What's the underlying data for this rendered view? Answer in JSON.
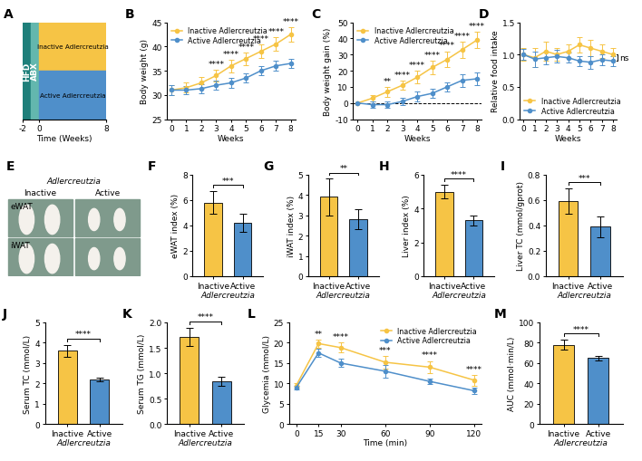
{
  "chart_data": [
    {
      "panel": "A",
      "type": "diagram",
      "xlim": [
        -2,
        8
      ],
      "xticks": [
        -2,
        0,
        8
      ],
      "xlabel": "Time (Weeks)",
      "phases": [
        {
          "name": "HFD",
          "color": "#1e7f7a"
        },
        {
          "name": "ABX",
          "color": "#63b7ae"
        }
      ],
      "series": [
        {
          "name": "Inactive Adlercreutzia",
          "color": "#f6c445"
        },
        {
          "name": "Active Adlercreutzia",
          "color": "#4f8fca"
        }
      ]
    },
    {
      "panel": "B",
      "type": "line",
      "x": [
        0,
        1,
        2,
        3,
        4,
        5,
        6,
        7,
        8
      ],
      "xlim": [
        -0.3,
        8.3
      ],
      "xticks": [
        0,
        1,
        2,
        3,
        4,
        5,
        6,
        7,
        8
      ],
      "xlabel": "Weeks",
      "ylabel": "Body weight (g)",
      "ylim": [
        25,
        45
      ],
      "yticks": [
        25,
        30,
        35,
        40,
        45
      ],
      "legend": "upper left",
      "marker": "o",
      "series": [
        {
          "name": "Inactive Adlercreutzia",
          "color": "#f6c445",
          "values": [
            31,
            31.5,
            32.5,
            34,
            36,
            37.5,
            39,
            40.5,
            42.5
          ],
          "errors": [
            1.0,
            1.0,
            1.2,
            1.2,
            1.3,
            1.3,
            1.4,
            1.4,
            1.5
          ]
        },
        {
          "name": "Active Adlercreutzia",
          "color": "#4f8fca",
          "values": [
            31,
            31,
            31.3,
            32,
            32.5,
            33.5,
            35,
            36,
            36.5
          ],
          "errors": [
            1.0,
            0.9,
            1.0,
            1.0,
            1.0,
            1.0,
            1.0,
            1.0,
            1.0
          ]
        }
      ],
      "annotations": [
        {
          "x": 3,
          "text": "****"
        },
        {
          "x": 4,
          "text": "****"
        },
        {
          "x": 5,
          "text": "****"
        },
        {
          "x": 6,
          "text": "****"
        },
        {
          "x": 7,
          "text": "****"
        },
        {
          "x": 8,
          "text": "****"
        }
      ]
    },
    {
      "panel": "C",
      "type": "line",
      "x": [
        0,
        1,
        2,
        3,
        4,
        5,
        6,
        7,
        8
      ],
      "xlim": [
        -0.3,
        8.3
      ],
      "xticks": [
        0,
        1,
        2,
        3,
        4,
        5,
        6,
        7,
        8
      ],
      "xlabel": "Weeks",
      "ylabel": "Body weight gain (%)",
      "ylim": [
        -10,
        50
      ],
      "yticks": [
        -10,
        0,
        10,
        20,
        30,
        40,
        50
      ],
      "legend": "upper left",
      "marker": "o",
      "series": [
        {
          "name": "Inactive Adlercreutzia",
          "color": "#f6c445",
          "values": [
            0,
            3,
            7,
            11,
            16,
            22,
            27,
            33,
            39
          ],
          "errors": [
            0,
            2,
            3,
            3,
            4,
            4,
            5,
            5,
            5
          ]
        },
        {
          "name": "Active Adlercreutzia",
          "color": "#4f8fca",
          "values": [
            0,
            -1,
            -1,
            1,
            4,
            6,
            10,
            14,
            15
          ],
          "errors": [
            0,
            2,
            2,
            2,
            3,
            3,
            3,
            4,
            4
          ]
        }
      ],
      "annotations": [
        {
          "x": 2,
          "text": "**"
        },
        {
          "x": 3,
          "text": "****"
        },
        {
          "x": 4,
          "text": "****"
        },
        {
          "x": 5,
          "text": "****"
        },
        {
          "x": 6,
          "text": "****"
        },
        {
          "x": 7,
          "text": "****"
        },
        {
          "x": 8,
          "text": "****"
        }
      ]
    },
    {
      "panel": "D",
      "type": "line",
      "x": [
        0,
        1,
        2,
        3,
        4,
        5,
        6,
        7,
        8
      ],
      "xlim": [
        -0.3,
        8.3
      ],
      "xticks": [
        0,
        1,
        2,
        3,
        4,
        5,
        6,
        7,
        8
      ],
      "xlabel": "Weeks",
      "ylabel": "Relative food intake",
      "ylim": [
        0,
        1.5
      ],
      "yticks": [
        {
          "value": 0,
          "label": "0.0"
        },
        {
          "value": 0.5,
          "label": "0.5"
        },
        {
          "value": 1.0,
          "label": "1.0"
        },
        {
          "value": 1.5,
          "label": "1.5"
        }
      ],
      "legend": "lower left",
      "marker": "o",
      "series": [
        {
          "name": "Inactive Adlercreutzia",
          "color": "#f6c445",
          "values": [
            1.0,
            0.95,
            1.05,
            1.0,
            1.05,
            1.15,
            1.1,
            1.05,
            1.0
          ],
          "errors": [
            0.1,
            0.15,
            0.15,
            0.1,
            0.1,
            0.12,
            0.12,
            0.1,
            0.1
          ]
        },
        {
          "name": "Active Adlercreutzia",
          "color": "#4f8fca",
          "values": [
            1.0,
            0.93,
            0.95,
            0.97,
            0.95,
            0.9,
            0.88,
            0.92,
            0.9
          ],
          "errors": [
            0.08,
            0.12,
            0.1,
            0.1,
            0.08,
            0.08,
            0.1,
            0.08,
            0.08
          ]
        }
      ],
      "side_annotation": "ns"
    },
    {
      "panel": "E",
      "type": "image",
      "title": "Adlercreutzia",
      "categories": [
        "Inactive",
        "Active"
      ],
      "row_labels": [
        "eWAT",
        "iWAT"
      ]
    },
    {
      "panel": "F",
      "type": "bar",
      "categories": [
        "Inactive",
        "Active"
      ],
      "xlabel": "Adlercreutzia",
      "ylabel": "eWAT index (%)",
      "ylim": [
        0,
        8
      ],
      "yticks": [
        0,
        2,
        4,
        6,
        8
      ],
      "colors": [
        "#f6c445",
        "#4f8fca"
      ],
      "values": [
        5.8,
        4.2
      ],
      "errors": [
        0.9,
        0.7
      ],
      "annotations": [
        {
          "text": "***"
        }
      ]
    },
    {
      "panel": "G",
      "type": "bar",
      "categories": [
        "Inactive",
        "Active"
      ],
      "xlabel": "Adlercreutzia",
      "ylabel": "iWAT index (%)",
      "ylim": [
        0,
        5
      ],
      "yticks": [
        0,
        1,
        2,
        3,
        4,
        5
      ],
      "colors": [
        "#f6c445",
        "#4f8fca"
      ],
      "values": [
        3.9,
        2.8
      ],
      "errors": [
        0.9,
        0.5
      ],
      "annotations": [
        {
          "text": "**"
        }
      ]
    },
    {
      "panel": "H",
      "type": "bar",
      "categories": [
        "Inactive",
        "Active"
      ],
      "xlabel": "Adlercreutzia",
      "ylabel": "Liver index (%)",
      "ylim": [
        0,
        6
      ],
      "yticks": [
        0,
        2,
        4,
        6
      ],
      "colors": [
        "#f6c445",
        "#4f8fca"
      ],
      "values": [
        5.0,
        3.3
      ],
      "errors": [
        0.4,
        0.3
      ],
      "annotations": [
        {
          "text": "****"
        }
      ]
    },
    {
      "panel": "I",
      "type": "bar",
      "categories": [
        "Inactive",
        "Active"
      ],
      "xlabel": "Adlercreutzia",
      "ylabel": "Liver TC (mmol/gprot)",
      "ylim": [
        0,
        0.8
      ],
      "yticks": [
        {
          "value": 0,
          "label": "0.0"
        },
        {
          "value": 0.2,
          "label": "0.2"
        },
        {
          "value": 0.4,
          "label": "0.4"
        },
        {
          "value": 0.6,
          "label": "0.6"
        },
        {
          "value": 0.8,
          "label": "0.8"
        }
      ],
      "colors": [
        "#f6c445",
        "#4f8fca"
      ],
      "values": [
        0.59,
        0.39
      ],
      "errors": [
        0.1,
        0.08
      ],
      "annotations": [
        {
          "text": "***"
        }
      ]
    },
    {
      "panel": "J",
      "type": "bar",
      "categories": [
        "Inactive",
        "Active"
      ],
      "xlabel": "Adlercreutzia",
      "ylabel": "Serum TC (mmol/L)",
      "ylim": [
        0,
        5
      ],
      "yticks": [
        0,
        1,
        2,
        3,
        4,
        5
      ],
      "colors": [
        "#f6c445",
        "#4f8fca"
      ],
      "values": [
        3.6,
        2.2
      ],
      "errors": [
        0.3,
        0.1
      ],
      "annotations": [
        {
          "text": "****"
        }
      ]
    },
    {
      "panel": "K",
      "type": "bar",
      "categories": [
        "Inactive",
        "Active"
      ],
      "xlabel": "Adlercreutzia",
      "ylabel": "Serum TG (mmol/L)",
      "ylim": [
        0,
        2.0
      ],
      "yticks": [
        {
          "value": 0,
          "label": "0.0"
        },
        {
          "value": 0.5,
          "label": "0.5"
        },
        {
          "value": 1.0,
          "label": "1.0"
        },
        {
          "value": 1.5,
          "label": "1.5"
        },
        {
          "value": 2.0,
          "label": "2.0"
        }
      ],
      "colors": [
        "#f6c445",
        "#4f8fca"
      ],
      "values": [
        1.72,
        0.84
      ],
      "errors": [
        0.18,
        0.09
      ],
      "annotations": [
        {
          "text": "****"
        }
      ]
    },
    {
      "panel": "L",
      "type": "line",
      "x": [
        0,
        15,
        30,
        60,
        90,
        120
      ],
      "xlim": [
        -5,
        125
      ],
      "xticks": [
        0,
        15,
        30,
        60,
        90,
        120
      ],
      "xlabel": "Time (min)",
      "ylabel": "Glycemia (mmol/L)",
      "ylim": [
        0,
        25
      ],
      "yticks": [
        0,
        5,
        10,
        15,
        20,
        25
      ],
      "legend": "upper right",
      "marker": "o",
      "series": [
        {
          "name": "Inactive Adlercreutzia",
          "color": "#f6c445",
          "values": [
            9.5,
            19.8,
            18.8,
            15.2,
            14.0,
            10.8
          ],
          "errors": [
            0.6,
            1.0,
            1.2,
            1.5,
            1.5,
            1.3
          ]
        },
        {
          "name": "Active Adlercreutzia",
          "color": "#4f8fca",
          "values": [
            9.0,
            17.5,
            15.0,
            13.0,
            10.5,
            8.2
          ],
          "errors": [
            0.5,
            1.0,
            1.0,
            1.5,
            0.6,
            0.8
          ]
        }
      ],
      "annotations": [
        {
          "x": 15,
          "text": "**"
        },
        {
          "x": 30,
          "text": "****"
        },
        {
          "x": 60,
          "text": "***"
        },
        {
          "x": 90,
          "text": "****"
        },
        {
          "x": 120,
          "text": "****"
        }
      ]
    },
    {
      "panel": "M",
      "type": "bar",
      "categories": [
        "Inactive",
        "Active"
      ],
      "xlabel": "Adlercreutzia",
      "ylabel": "AUC (mmol·min/L)",
      "ylim": [
        0,
        100
      ],
      "yticks": [
        0,
        20,
        40,
        60,
        80,
        100
      ],
      "colors": [
        "#f6c445",
        "#4f8fca"
      ],
      "values": [
        78,
        65
      ],
      "errors": [
        5,
        2
      ],
      "annotations": [
        {
          "text": "****"
        }
      ]
    }
  ]
}
